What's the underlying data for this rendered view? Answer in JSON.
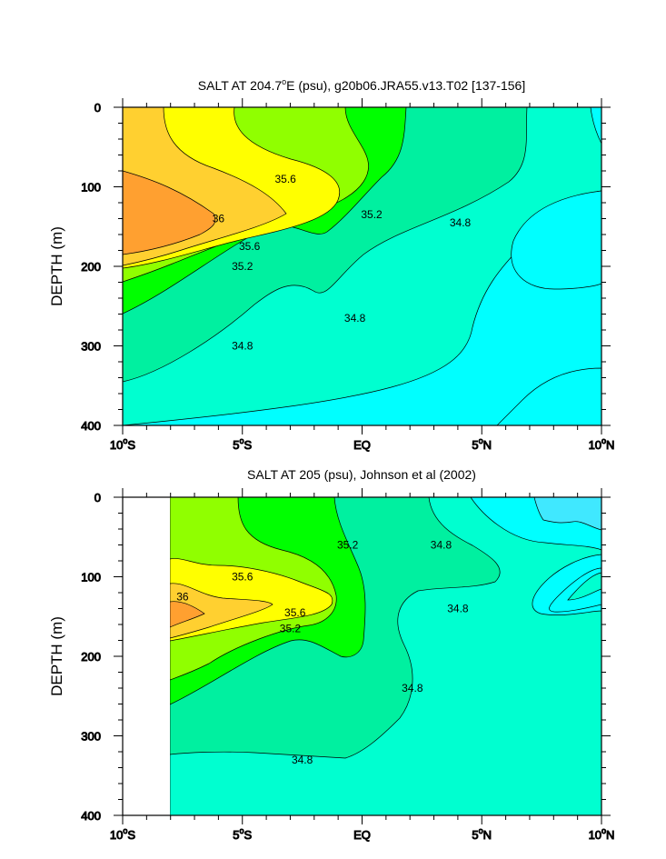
{
  "chart_data": [
    {
      "type": "contour",
      "id": "top",
      "title_pre": "SALT AT 204.7",
      "title_sup": "o",
      "title_post": "E (psu), g20b06.JRA55.v13.T02 [137-156]",
      "ylabel": "DEPTH (m)",
      "xlim_deg": [
        -10,
        10
      ],
      "ylim_m": [
        0,
        400
      ],
      "x_ticks": [
        {
          "value": -10,
          "num": "10",
          "sup": "o",
          "hemi": "S"
        },
        {
          "value": -5,
          "num": "5",
          "sup": "o",
          "hemi": "S"
        },
        {
          "value": 0,
          "num": "EQ",
          "sup": "",
          "hemi": ""
        },
        {
          "value": 5,
          "num": "5",
          "sup": "o",
          "hemi": "N"
        },
        {
          "value": 10,
          "num": "10",
          "sup": "o",
          "hemi": "N"
        }
      ],
      "y_ticks": [
        {
          "value": 0,
          "label": "0"
        },
        {
          "value": 100,
          "label": "100"
        },
        {
          "value": 200,
          "label": "200"
        },
        {
          "value": 300,
          "label": "300"
        },
        {
          "value": 400,
          "label": "400"
        }
      ],
      "data_extent_lon": [
        -10,
        10
      ],
      "contour_levels": [
        34.6,
        34.8,
        35.0,
        35.2,
        35.4,
        35.6,
        35.8,
        36.0,
        36.2
      ],
      "fill_colors": [
        "#00ffff",
        "#00ffd0",
        "#00f0a0",
        "#00ff00",
        "#90ff00",
        "#ffff00",
        "#ffd030",
        "#ffa030"
      ],
      "contour_labels": [
        {
          "text": "35.6",
          "lon": -3.2,
          "depth": 90
        },
        {
          "text": "36",
          "lon": -6.0,
          "depth": 140
        },
        {
          "text": "35.6",
          "lon": -4.7,
          "depth": 175
        },
        {
          "text": "35.2",
          "lon": -5.0,
          "depth": 200
        },
        {
          "text": "35.2",
          "lon": 0.4,
          "depth": 135
        },
        {
          "text": "34.8",
          "lon": 4.1,
          "depth": 145
        },
        {
          "text": "34.8",
          "lon": -0.3,
          "depth": 265
        },
        {
          "text": "34.8",
          "lon": -5.0,
          "depth": 300
        }
      ]
    },
    {
      "type": "contour",
      "id": "bottom",
      "title_pre": "SALT AT 205 (psu), Johnson et al (2002)",
      "title_sup": "",
      "title_post": "",
      "ylabel": "DEPTH (m)",
      "xlim_deg": [
        -10,
        10
      ],
      "ylim_m": [
        0,
        400
      ],
      "x_ticks": [
        {
          "value": -10,
          "num": "10",
          "sup": "o",
          "hemi": "S"
        },
        {
          "value": -5,
          "num": "5",
          "sup": "o",
          "hemi": "S"
        },
        {
          "value": 0,
          "num": "EQ",
          "sup": "",
          "hemi": ""
        },
        {
          "value": 5,
          "num": "5",
          "sup": "o",
          "hemi": "N"
        },
        {
          "value": 10,
          "num": "10",
          "sup": "o",
          "hemi": "N"
        }
      ],
      "y_ticks": [
        {
          "value": 0,
          "label": "0"
        },
        {
          "value": 100,
          "label": "100"
        },
        {
          "value": 200,
          "label": "200"
        },
        {
          "value": 300,
          "label": "300"
        },
        {
          "value": 400,
          "label": "400"
        }
      ],
      "data_extent_lon": [
        -8,
        10
      ],
      "contour_levels": [
        34.4,
        34.6,
        34.8,
        35.0,
        35.2,
        35.4,
        35.6,
        35.8,
        36.0,
        36.2
      ],
      "fill_colors": [
        "#40e8ff",
        "#00ffff",
        "#00ffd0",
        "#00f0a0",
        "#00ff00",
        "#90ff00",
        "#ffff00",
        "#ffd030",
        "#ffa030"
      ],
      "contour_labels": [
        {
          "text": "35.6",
          "lon": -5.0,
          "depth": 100
        },
        {
          "text": "36",
          "lon": -7.5,
          "depth": 125
        },
        {
          "text": "35.6",
          "lon": -2.8,
          "depth": 145
        },
        {
          "text": "35.2",
          "lon": -3.0,
          "depth": 165
        },
        {
          "text": "35.2",
          "lon": -0.6,
          "depth": 60
        },
        {
          "text": "34.8",
          "lon": 3.3,
          "depth": 60
        },
        {
          "text": "34.8",
          "lon": 4.0,
          "depth": 140
        },
        {
          "text": "34.8",
          "lon": 2.1,
          "depth": 240
        },
        {
          "text": "34.8",
          "lon": -2.5,
          "depth": 330
        }
      ]
    }
  ]
}
